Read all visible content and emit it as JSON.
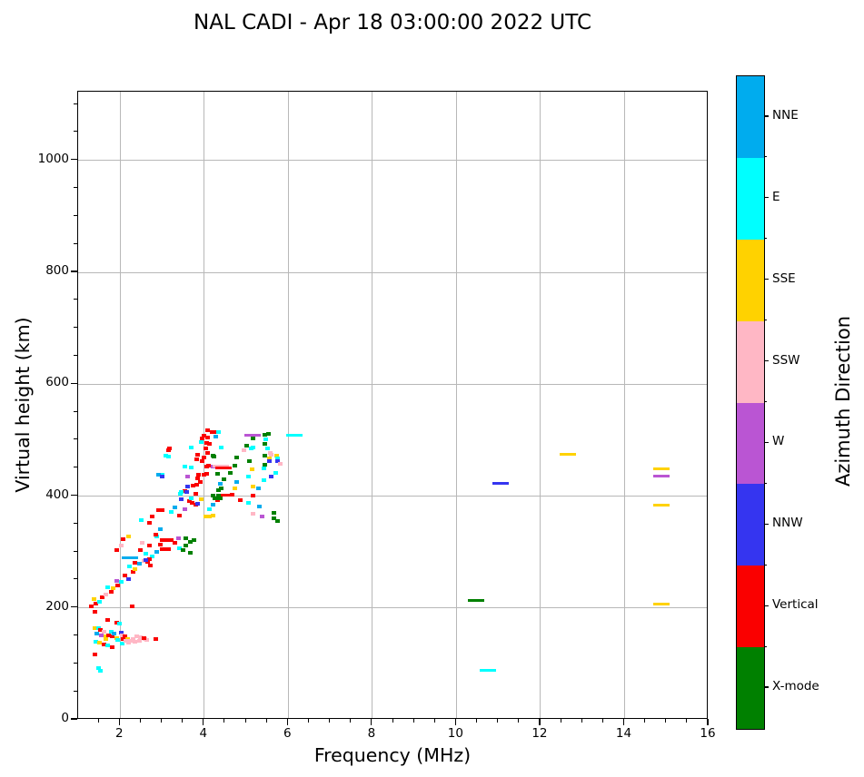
{
  "title": "NAL CADI - Apr 18 03:00:00 2022 UTC",
  "axes": {
    "xlabel": "Frequency (MHz)",
    "ylabel": "Virtual height (km)",
    "xlim": [
      1,
      16
    ],
    "ylim": [
      0,
      1123
    ],
    "xticks": [
      2,
      4,
      6,
      8,
      10,
      12,
      14,
      16
    ],
    "yticks": [
      0,
      200,
      400,
      600,
      800,
      1000
    ],
    "x_minor_step": 0.5,
    "y_minor_step": 50,
    "grid": "on",
    "grid_color": "#b8b8b8"
  },
  "colorbar": {
    "label": "Azimuth Direction",
    "categories": [
      {
        "label": "NNE",
        "color": "#00ACEE"
      },
      {
        "label": "E",
        "color": "#00FFFF"
      },
      {
        "label": "SSE",
        "color": "#FFD200"
      },
      {
        "label": "SSW",
        "color": "#FFB7C5"
      },
      {
        "label": "W",
        "color": "#BA55D3"
      },
      {
        "label": "NNW",
        "color": "#3535F0"
      },
      {
        "label": "Vertical",
        "color": "#FA0000"
      },
      {
        "label": "X-mode",
        "color": "#008000"
      }
    ]
  },
  "chart_data": {
    "type": "scatter",
    "title": "NAL CADI - Apr 18 03:00:00 2022 UTC",
    "xlabel": "Frequency (MHz)",
    "ylabel": "Virtual height (km)",
    "xlim": [
      1,
      16
    ],
    "ylim": [
      0,
      1123
    ],
    "legend_title": "Azimuth Direction",
    "directions": [
      "NNE",
      "E",
      "SSE",
      "SSW",
      "W",
      "NNW",
      "Vertical",
      "X-mode"
    ],
    "point_format": "[frequency_MHz, virtual_height_km, direction_index, wide_dash_flag(optional)]",
    "points": [
      [
        1.39,
        193,
        6
      ],
      [
        1.71,
        178,
        6
      ],
      [
        1.91,
        174,
        6
      ],
      [
        1.99,
        172,
        1
      ],
      [
        1.39,
        164,
        2
      ],
      [
        1.48,
        164,
        1
      ],
      [
        1.54,
        161,
        6
      ],
      [
        1.61,
        157,
        3
      ],
      [
        1.56,
        151,
        4
      ],
      [
        1.65,
        149,
        2
      ],
      [
        1.73,
        151,
        6
      ],
      [
        1.8,
        149,
        6
      ],
      [
        1.91,
        146,
        2
      ],
      [
        2.02,
        156,
        5
      ],
      [
        2.04,
        151,
        3
      ],
      [
        2.12,
        149,
        6
      ],
      [
        2.17,
        144,
        2
      ],
      [
        2.3,
        144,
        3
      ],
      [
        2.4,
        149,
        3
      ],
      [
        2.49,
        148,
        3
      ],
      [
        2.58,
        144,
        3
      ],
      [
        2.64,
        143,
        3
      ],
      [
        2.56,
        146,
        6
      ],
      [
        2.84,
        144,
        6
      ],
      [
        1.43,
        140,
        1
      ],
      [
        1.5,
        138,
        2
      ],
      [
        1.61,
        135,
        6
      ],
      [
        1.71,
        133,
        1
      ],
      [
        1.82,
        130,
        6
      ],
      [
        2.04,
        136,
        1
      ],
      [
        2.19,
        138,
        3
      ],
      [
        2.25,
        141,
        3
      ],
      [
        2.36,
        140,
        3
      ],
      [
        1.48,
        92,
        1
      ],
      [
        1.54,
        88,
        1
      ],
      [
        1.39,
        117,
        6
      ],
      [
        1.45,
        154,
        0
      ],
      [
        1.78,
        157,
        1
      ],
      [
        1.86,
        154,
        0
      ],
      [
        1.67,
        144,
        2
      ],
      [
        1.95,
        143,
        1
      ],
      [
        2.08,
        144,
        6
      ],
      [
        2.13,
        141,
        3
      ],
      [
        2.45,
        141,
        3
      ],
      [
        1.32,
        203,
        6
      ],
      [
        1.43,
        208,
        6
      ],
      [
        1.5,
        211,
        1
      ],
      [
        1.37,
        216,
        2
      ],
      [
        1.58,
        219,
        6
      ],
      [
        1.65,
        224,
        3
      ],
      [
        1.71,
        237,
        1
      ],
      [
        1.78,
        229,
        6
      ],
      [
        1.84,
        235,
        2
      ],
      [
        1.91,
        248,
        4
      ],
      [
        1.93,
        240,
        6
      ],
      [
        2.02,
        247,
        1
      ],
      [
        2.12,
        258,
        6
      ],
      [
        2.19,
        252,
        5
      ],
      [
        2.23,
        274,
        1
      ],
      [
        2.3,
        264,
        6
      ],
      [
        2.36,
        269,
        2
      ],
      [
        2.45,
        279,
        0
      ],
      [
        2.56,
        284,
        3
      ],
      [
        2.66,
        282,
        6
      ],
      [
        2.71,
        276,
        6
      ],
      [
        2.77,
        292,
        1
      ],
      [
        2.69,
        287,
        6
      ],
      [
        2.88,
        300,
        0
      ],
      [
        2.95,
        313,
        6
      ],
      [
        3.01,
        305,
        6
      ],
      [
        3.1,
        305,
        6
      ],
      [
        3.16,
        305,
        6
      ],
      [
        2.28,
        203,
        6
      ],
      [
        2.23,
        290,
        0,
        1
      ],
      [
        2.36,
        281,
        6
      ],
      [
        2.47,
        303,
        6
      ],
      [
        2.6,
        297,
        1
      ],
      [
        2.69,
        312,
        6
      ],
      [
        2.53,
        316,
        3
      ],
      [
        2.19,
        328,
        2
      ],
      [
        2.08,
        323,
        6
      ],
      [
        1.91,
        303,
        6
      ],
      [
        2.02,
        312,
        3
      ],
      [
        2.62,
        286,
        5
      ],
      [
        2.88,
        328,
        1
      ],
      [
        2.99,
        321,
        6
      ],
      [
        3.1,
        321,
        6
      ],
      [
        3.21,
        321,
        6
      ],
      [
        3.31,
        316,
        6
      ],
      [
        3.42,
        307,
        1
      ],
      [
        3.49,
        303,
        7
      ],
      [
        3.57,
        312,
        7
      ],
      [
        3.57,
        325,
        7
      ],
      [
        3.66,
        299,
        7
      ],
      [
        3.66,
        318,
        7
      ],
      [
        3.75,
        321,
        7
      ],
      [
        2.51,
        357,
        1
      ],
      [
        2.77,
        363,
        6
      ],
      [
        2.92,
        375,
        6
      ],
      [
        3.01,
        375,
        6
      ],
      [
        3.21,
        372,
        1
      ],
      [
        3.31,
        380,
        0
      ],
      [
        3.42,
        365,
        6
      ],
      [
        3.55,
        376,
        4
      ],
      [
        3.64,
        391,
        6
      ],
      [
        3.72,
        388,
        6
      ],
      [
        3.79,
        384,
        6
      ],
      [
        3.85,
        386,
        5
      ],
      [
        3.92,
        394,
        2
      ],
      [
        4.03,
        363,
        2
      ],
      [
        4.13,
        363,
        2
      ],
      [
        4.22,
        365,
        2
      ],
      [
        4.13,
        376,
        1
      ],
      [
        4.2,
        385,
        0
      ],
      [
        4.31,
        393,
        6
      ],
      [
        4.5,
        402,
        6,
        1
      ],
      [
        4.67,
        402,
        6
      ],
      [
        4.85,
        393,
        6
      ],
      [
        5.06,
        388,
        1
      ],
      [
        5.17,
        401,
        6
      ],
      [
        5.32,
        381,
        0
      ],
      [
        5.37,
        363,
        4
      ],
      [
        5.17,
        368,
        3
      ],
      [
        5.65,
        370,
        7
      ],
      [
        5.65,
        360,
        7
      ],
      [
        5.75,
        355,
        7
      ],
      [
        2.69,
        352,
        6
      ],
      [
        2.95,
        341,
        0
      ],
      [
        2.84,
        331,
        6
      ],
      [
        3.14,
        482,
        6
      ],
      [
        3.18,
        485,
        6
      ],
      [
        3.08,
        472,
        1
      ],
      [
        3.14,
        470,
        1
      ],
      [
        3.01,
        438,
        1
      ],
      [
        2.92,
        438,
        0
      ],
      [
        2.99,
        435,
        5
      ],
      [
        3.7,
        487,
        1
      ],
      [
        3.92,
        497,
        1
      ],
      [
        4.0,
        508,
        6
      ],
      [
        4.09,
        505,
        6
      ],
      [
        4.05,
        495,
        6
      ],
      [
        4.13,
        493,
        6
      ],
      [
        4.03,
        485,
        6
      ],
      [
        4.09,
        477,
        6
      ],
      [
        4.0,
        469,
        6
      ],
      [
        3.96,
        462,
        6
      ],
      [
        4.05,
        453,
        6
      ],
      [
        4.11,
        454,
        6
      ],
      [
        3.85,
        474,
        6
      ],
      [
        3.83,
        466,
        6
      ],
      [
        3.87,
        438,
        6
      ],
      [
        3.85,
        432,
        6
      ],
      [
        3.9,
        425,
        6
      ],
      [
        3.83,
        420,
        6
      ],
      [
        3.74,
        419,
        6
      ],
      [
        3.55,
        409,
        6
      ],
      [
        3.79,
        404,
        6
      ],
      [
        4.0,
        438,
        6
      ],
      [
        4.05,
        440,
        6
      ],
      [
        4.2,
        472,
        7
      ],
      [
        4.24,
        471,
        7
      ],
      [
        4.31,
        440,
        7
      ],
      [
        4.33,
        411,
        7
      ],
      [
        4.22,
        401,
        7
      ],
      [
        4.35,
        401,
        7
      ],
      [
        4.2,
        453,
        4
      ],
      [
        4.39,
        453,
        3,
        1
      ],
      [
        3.61,
        417,
        5
      ],
      [
        3.61,
        435,
        4
      ],
      [
        3.55,
        453,
        1
      ],
      [
        3.46,
        407,
        1
      ],
      [
        3.46,
        394,
        5
      ],
      [
        3.7,
        396,
        1
      ],
      [
        4.28,
        396,
        7
      ],
      [
        4.39,
        396,
        7
      ],
      [
        4.46,
        450,
        6,
        1
      ],
      [
        4.78,
        425,
        0
      ],
      [
        4.72,
        414,
        2
      ],
      [
        4.39,
        422,
        0
      ],
      [
        4.46,
        430,
        7
      ],
      [
        4.41,
        414,
        7
      ],
      [
        4.41,
        487,
        1
      ],
      [
        4.63,
        441,
        7
      ],
      [
        4.72,
        454,
        7
      ],
      [
        4.78,
        469,
        7
      ],
      [
        5.0,
        490,
        7
      ],
      [
        5.15,
        503,
        7
      ],
      [
        5.11,
        485,
        1
      ],
      [
        4.94,
        482,
        3
      ],
      [
        5.08,
        462,
        7
      ],
      [
        5.13,
        448,
        2
      ],
      [
        5.15,
        508,
        4,
        1
      ],
      [
        5.45,
        510,
        7
      ],
      [
        5.52,
        511,
        7
      ],
      [
        5.47,
        501,
        1
      ],
      [
        5.45,
        493,
        7
      ],
      [
        5.17,
        487,
        1
      ],
      [
        5.58,
        477,
        3
      ],
      [
        5.45,
        472,
        7
      ],
      [
        5.56,
        467,
        2
      ],
      [
        5.56,
        462,
        5
      ],
      [
        5.6,
        474,
        3
      ],
      [
        5.45,
        456,
        7
      ],
      [
        5.43,
        449,
        1
      ],
      [
        5.06,
        435,
        1
      ],
      [
        5.43,
        428,
        1
      ],
      [
        5.6,
        435,
        5
      ],
      [
        5.5,
        485,
        1
      ],
      [
        5.73,
        472,
        2
      ],
      [
        5.75,
        467,
        1
      ],
      [
        5.75,
        462,
        5
      ],
      [
        5.8,
        458,
        3
      ],
      [
        5.71,
        441,
        1
      ],
      [
        6.15,
        508,
        1,
        1
      ],
      [
        5.28,
        414,
        0
      ],
      [
        5.17,
        417,
        2
      ],
      [
        4.28,
        514,
        6
      ],
      [
        4.18,
        514,
        6
      ],
      [
        4.07,
        518,
        6
      ],
      [
        3.96,
        503,
        6
      ],
      [
        4.28,
        506,
        0
      ],
      [
        4.35,
        514,
        1
      ],
      [
        3.7,
        451,
        1
      ],
      [
        3.59,
        407,
        5
      ],
      [
        3.44,
        404,
        1
      ],
      [
        4.26,
        396,
        7
      ],
      [
        3.38,
        325,
        4
      ],
      [
        10.75,
        89,
        1,
        1
      ],
      [
        10.47,
        213,
        7,
        1
      ],
      [
        11.05,
        423,
        5,
        1
      ],
      [
        12.65,
        474,
        2,
        1
      ],
      [
        14.88,
        448,
        2,
        1
      ],
      [
        14.88,
        435,
        4,
        1
      ],
      [
        14.88,
        383,
        2,
        1
      ],
      [
        14.88,
        207,
        2,
        1
      ]
    ]
  }
}
